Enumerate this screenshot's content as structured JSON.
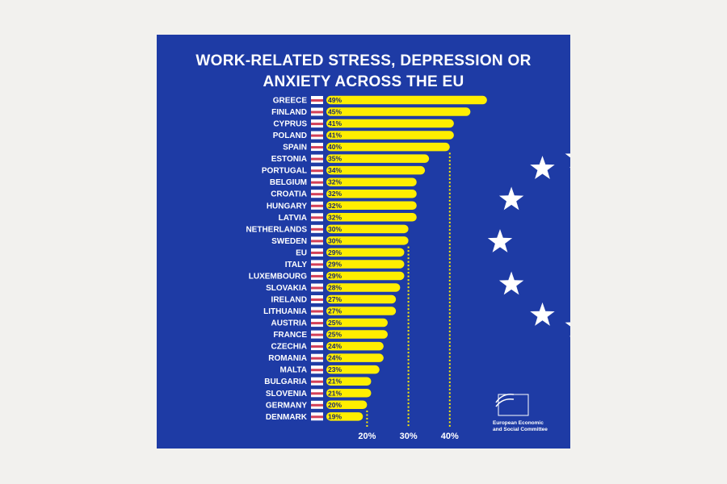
{
  "title_line1": "WORK-RELATED STRESS, DEPRESSION OR",
  "title_line2": "ANXIETY ACROSS THE EU",
  "organization": {
    "line1": "European Economic",
    "line2": "and Social Committee"
  },
  "colors": {
    "background": "#1e3ba5",
    "bar": "#ffee00",
    "text": "#ffffff"
  },
  "chart_data": {
    "type": "bar",
    "orientation": "horizontal",
    "title": "WORK-RELATED STRESS, DEPRESSION OR ANXIETY ACROSS THE EU",
    "categories": [
      "GREECE",
      "FINLAND",
      "CYPRUS",
      "POLAND",
      "SPAIN",
      "ESTONIA",
      "PORTUGAL",
      "BELGIUM",
      "CROATIA",
      "HUNGARY",
      "LATVIA",
      "NETHERLANDS",
      "SWEDEN",
      "EU",
      "ITALY",
      "LUXEMBOURG",
      "SLOVAKIA",
      "IRELAND",
      "LITHUANIA",
      "AUSTRIA",
      "FRANCE",
      "CZECHIA",
      "ROMANIA",
      "MALTA",
      "BULGARIA",
      "SLOVENIA",
      "GERMANY",
      "DENMARK"
    ],
    "values": [
      49,
      45,
      41,
      41,
      40,
      35,
      34,
      32,
      32,
      32,
      32,
      30,
      30,
      29,
      29,
      29,
      28,
      27,
      27,
      25,
      25,
      24,
      24,
      23,
      21,
      21,
      20,
      19
    ],
    "value_labels": [
      "49%",
      "45%",
      "41%",
      "41%",
      "40%",
      "35%",
      "34%",
      "32%",
      "32%",
      "32%",
      "32%",
      "30%",
      "30%",
      "29%",
      "29%",
      "29%",
      "28%",
      "27%",
      "27%",
      "25%",
      "25%",
      "24%",
      "24%",
      "23%",
      "21%",
      "21%",
      "20%",
      "19%"
    ],
    "reference_lines": [
      20,
      30,
      40
    ],
    "reference_labels": [
      "20%",
      "30%",
      "40%"
    ],
    "grid": false,
    "legend": "none"
  }
}
